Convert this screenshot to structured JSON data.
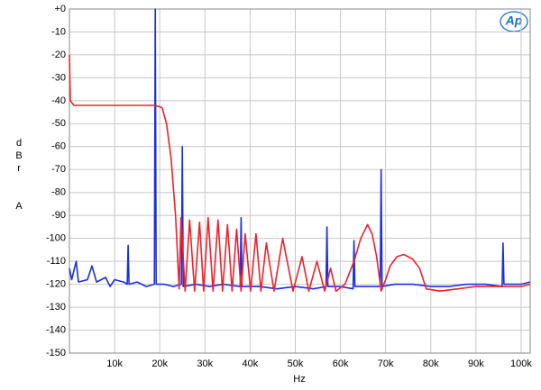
{
  "chart_data": {
    "type": "line",
    "xlabel": "Hz",
    "ylabel": "dBr",
    "ylabel2": "A",
    "logo": "Ap",
    "grid": true,
    "xlim": [
      0,
      102000
    ],
    "ylim": [
      -150,
      0
    ],
    "xticks": [
      {
        "value": 10000,
        "label": "10k"
      },
      {
        "value": 20000,
        "label": "20k"
      },
      {
        "value": 30000,
        "label": "30k"
      },
      {
        "value": 40000,
        "label": "40k"
      },
      {
        "value": 50000,
        "label": "50k"
      },
      {
        "value": 60000,
        "label": "60k"
      },
      {
        "value": 70000,
        "label": "70k"
      },
      {
        "value": 80000,
        "label": "80k"
      },
      {
        "value": 90000,
        "label": "90k"
      },
      {
        "value": 100000,
        "label": "100k"
      }
    ],
    "yticks": [
      {
        "value": 0,
        "label": "+0"
      },
      -10,
      -20,
      -30,
      -40,
      -50,
      -60,
      -70,
      -80,
      -90,
      -100,
      -110,
      -120,
      -130,
      -140,
      -150
    ],
    "series": [
      {
        "color": "#1a2fe0",
        "x": [
          0,
          500,
          1500,
          2000,
          4000,
          5000,
          6000,
          8000,
          9000,
          10000,
          12000,
          12800,
          13000,
          13200,
          15000,
          17000,
          18800,
          19000,
          19200,
          21000,
          23000,
          24800,
          25000,
          25200,
          28000,
          31000,
          34000,
          37800,
          38000,
          38200,
          42000,
          46000,
          50000,
          54000,
          56800,
          57000,
          57200,
          60000,
          62800,
          63000,
          63200,
          66000,
          68800,
          69000,
          69200,
          72000,
          76000,
          80000,
          84000,
          88000,
          92000,
          95800,
          96000,
          96200,
          100000,
          102000
        ],
        "values": [
          -113,
          -118,
          -110,
          -119,
          -118,
          -112,
          -119,
          -117,
          -121,
          -118,
          -119,
          -120,
          -103,
          -120,
          -119,
          -121,
          -120,
          0,
          -120,
          -120,
          -121,
          -120,
          -60,
          -121,
          -120,
          -121,
          -120,
          -121,
          -91,
          -121,
          -121,
          -122,
          -121,
          -122,
          -121,
          -95,
          -121,
          -121,
          -122,
          -101,
          -121,
          -121,
          -121,
          -70,
          -121,
          -120,
          -120,
          -121,
          -121,
          -120,
          -120,
          -121,
          -102,
          -120,
          -120,
          -119
        ]
      },
      {
        "color": "#f0202a",
        "x": [
          0,
          200,
          1000,
          5000,
          10000,
          15000,
          19000,
          20500,
          21500,
          22500,
          23500,
          24300,
          24700,
          25600,
          26600,
          27700,
          28800,
          29700,
          30700,
          31800,
          32900,
          33900,
          35000,
          36000,
          37000,
          38000,
          38900,
          40100,
          41300,
          42400,
          43600,
          45300,
          47200,
          49500,
          51500,
          53000,
          54800,
          56500,
          57800,
          59000,
          61000,
          63000,
          64500,
          66000,
          67000,
          68000,
          69000,
          70000,
          71000,
          72500,
          74000,
          76000,
          77500,
          79000,
          82000,
          86000,
          90000,
          95000,
          100000,
          102000
        ],
        "values": [
          -20,
          -40,
          -42,
          -42,
          -42,
          -42,
          -42,
          -43,
          -50,
          -65,
          -90,
          -122,
          -91,
          -123,
          -92,
          -123,
          -93,
          -123,
          -91,
          -123,
          -92,
          -123,
          -94,
          -123,
          -96,
          -123,
          -98,
          -123,
          -98,
          -123,
          -102,
          -123,
          -100,
          -123,
          -108,
          -123,
          -110,
          -123,
          -113,
          -123,
          -120,
          -110,
          -100,
          -94,
          -98,
          -108,
          -123,
          -118,
          -112,
          -108,
          -107,
          -109,
          -113,
          -122,
          -123,
          -122,
          -121,
          -121,
          -121,
          -120
        ]
      }
    ]
  }
}
